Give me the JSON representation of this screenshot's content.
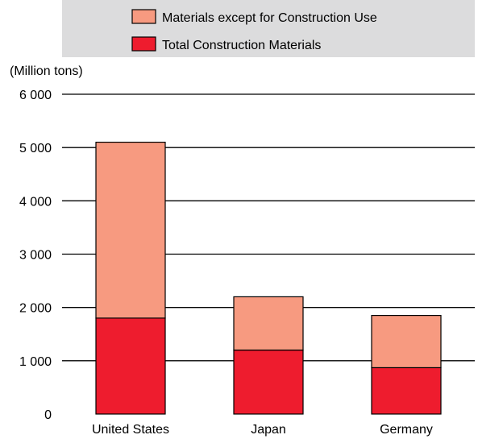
{
  "chart_data": {
    "type": "bar",
    "stacked": true,
    "categories": [
      "United States",
      "Japan",
      "Germany"
    ],
    "series": [
      {
        "name": "Total Construction Materials",
        "values": [
          1800,
          1200,
          870
        ],
        "color": "#ee1c2e"
      },
      {
        "name": "Materials except for Construction Use",
        "values": [
          3300,
          1000,
          980
        ],
        "color": "#f79a80"
      }
    ],
    "ylabel": "(Million tons)",
    "ylim": [
      0,
      6000
    ],
    "yticks": [
      0,
      1000,
      2000,
      3000,
      4000,
      5000,
      6000
    ],
    "ytick_labels": [
      "0",
      "1 000",
      "2 000",
      "3 000",
      "4 000",
      "5 000",
      "6 000"
    ],
    "grid": true,
    "legend": {
      "placement": "top",
      "background": "#dcdcdd",
      "items": [
        {
          "label": "Materials except for Construction Use",
          "color": "#f79a80"
        },
        {
          "label": "Total Construction Materials",
          "color": "#ee1c2e"
        }
      ]
    }
  }
}
